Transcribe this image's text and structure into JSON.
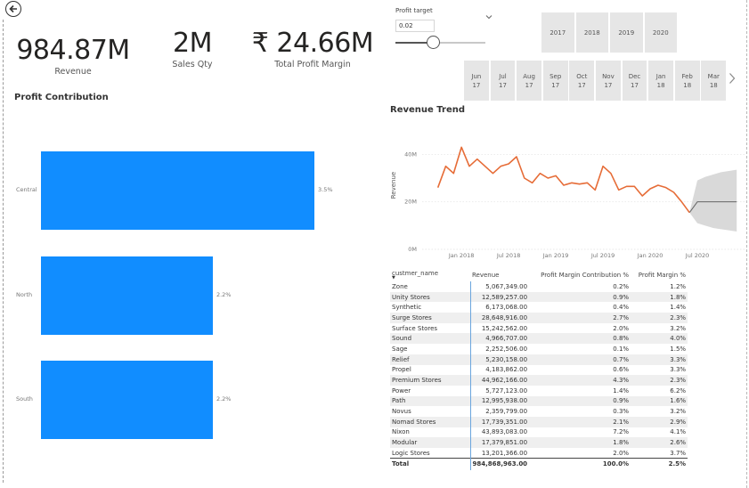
{
  "kpis": {
    "revenue": {
      "value": "984.87M",
      "label": "Revenue"
    },
    "sales_qty": {
      "value": "2M",
      "label": "Sales Qty"
    },
    "profit_margin": {
      "value": "₹ 24.66M",
      "label": "Total Profit Margin"
    }
  },
  "profit_contribution": {
    "title": "Profit Contribution",
    "chart_data": {
      "type": "bar",
      "orientation": "horizontal",
      "categories": [
        "Central",
        "North",
        "South"
      ],
      "values": [
        3.5,
        2.2,
        2.2
      ],
      "labels": [
        "3.5%",
        "2.2%",
        "2.2%"
      ],
      "xlim": [
        0,
        3.5
      ]
    }
  },
  "slicer": {
    "title": "Profit target",
    "value": "0.02",
    "slider_fraction": 0.42
  },
  "years": [
    "2017",
    "2018",
    "2019",
    "2020"
  ],
  "months": [
    {
      "m": "Jun",
      "y": "17"
    },
    {
      "m": "Jul",
      "y": "17"
    },
    {
      "m": "Aug",
      "y": "17"
    },
    {
      "m": "Sep",
      "y": "17"
    },
    {
      "m": "Oct",
      "y": "17"
    },
    {
      "m": "Nov",
      "y": "17"
    },
    {
      "m": "Dec",
      "y": "17"
    },
    {
      "m": "Jan",
      "y": "18"
    },
    {
      "m": "Feb",
      "y": "18"
    },
    {
      "m": "Mar",
      "y": "18"
    }
  ],
  "revenue_trend": {
    "title": "Revenue Trend",
    "chart_data": {
      "type": "line",
      "ylabel": "Revenue",
      "yticks": [
        "0M",
        "20M",
        "40M"
      ],
      "ylim": [
        0,
        45
      ],
      "xticks": [
        "Jan 2018",
        "Jul 2018",
        "Jan 2019",
        "Jul 2019",
        "Jan 2020",
        "Jul 2020"
      ],
      "x": [
        "2017-10",
        "2017-11",
        "2017-12",
        "2018-01",
        "2018-02",
        "2018-03",
        "2018-04",
        "2018-05",
        "2018-06",
        "2018-07",
        "2018-08",
        "2018-09",
        "2018-10",
        "2018-11",
        "2018-12",
        "2019-01",
        "2019-02",
        "2019-03",
        "2019-04",
        "2019-05",
        "2019-06",
        "2019-07",
        "2019-08",
        "2019-09",
        "2019-10",
        "2019-11",
        "2019-12",
        "2020-01",
        "2020-02",
        "2020-03",
        "2020-04",
        "2020-05",
        "2020-06"
      ],
      "values": [
        26,
        35,
        32,
        43,
        35,
        38,
        35,
        32,
        35,
        36,
        39,
        30,
        28,
        32,
        30,
        31,
        27,
        28,
        27.5,
        28,
        25,
        35,
        32,
        25,
        26.5,
        26.5,
        22.5,
        25.5,
        27,
        26,
        24,
        20,
        15.5
      ],
      "forecast": {
        "x": [
          "2020-06",
          "2020-07",
          "2020-08",
          "2020-09",
          "2020-10",
          "2020-11",
          "2020-12"
        ],
        "values": [
          15.5,
          20,
          20,
          20,
          20,
          20,
          20
        ],
        "upper": [
          15.5,
          29,
          30.5,
          31.5,
          32.5,
          33,
          33.5
        ],
        "lower": [
          15.5,
          11,
          10,
          9,
          8.5,
          8,
          7.5
        ]
      },
      "series_color": "#e66c37"
    }
  },
  "table": {
    "headers": [
      "custmer_name",
      "Revenue",
      "Profit Margin Contribution %",
      "Profit Margin %"
    ],
    "rows": [
      [
        "Zone",
        "5,067,349.00",
        "0.2%",
        "1.2%"
      ],
      [
        "Unity Stores",
        "12,589,257.00",
        "0.9%",
        "1.8%"
      ],
      [
        "Synthetic",
        "6,173,068.00",
        "0.4%",
        "1.4%"
      ],
      [
        "Surge Stores",
        "28,648,916.00",
        "2.7%",
        "2.3%"
      ],
      [
        "Surface Stores",
        "15,242,562.00",
        "2.0%",
        "3.2%"
      ],
      [
        "Sound",
        "4,966,707.00",
        "0.8%",
        "4.0%"
      ],
      [
        "Sage",
        "2,252,506.00",
        "0.1%",
        "1.5%"
      ],
      [
        "Relief",
        "5,230,158.00",
        "0.7%",
        "3.3%"
      ],
      [
        "Propel",
        "4,183,862.00",
        "0.6%",
        "3.3%"
      ],
      [
        "Premium Stores",
        "44,962,166.00",
        "4.3%",
        "2.3%"
      ],
      [
        "Power",
        "5,727,123.00",
        "1.4%",
        "6.2%"
      ],
      [
        "Path",
        "12,995,938.00",
        "0.9%",
        "1.6%"
      ],
      [
        "Novus",
        "2,359,799.00",
        "0.3%",
        "3.2%"
      ],
      [
        "Nomad Stores",
        "17,739,351.00",
        "2.1%",
        "2.9%"
      ],
      [
        "Nixon",
        "43,893,083.00",
        "7.2%",
        "4.1%"
      ],
      [
        "Modular",
        "17,379,851.00",
        "1.8%",
        "2.6%"
      ],
      [
        "Logic Stores",
        "13,201,366.00",
        "2.0%",
        "3.7%"
      ]
    ],
    "total": [
      "Total",
      "984,868,963.00",
      "100.0%",
      "2.5%"
    ]
  },
  "colors": {
    "bar": "#118dff",
    "line": "#e66c37",
    "forecast_band": "#d9d9d9",
    "tile": "#e6e6e6"
  },
  "icons": {
    "back": "arrow-left-circle-icon",
    "chevron_down": "chevron-down-icon",
    "chevron_right": "chevron-right-icon",
    "sort": "sort-desc-icon"
  }
}
